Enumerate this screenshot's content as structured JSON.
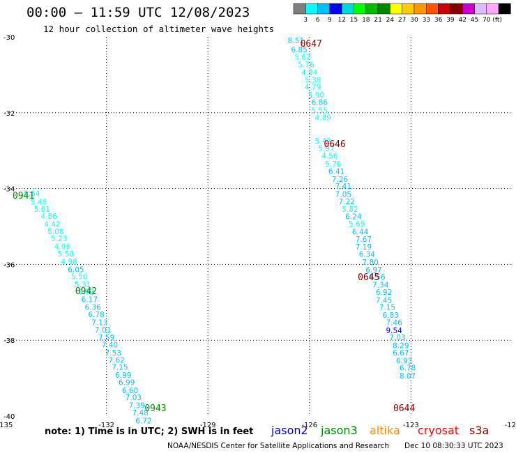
{
  "title": "00:00 – 11:59 UTC 12/08/2023",
  "subtitle": "12 hour collection of altimeter wave heights",
  "note": "note: 1) Time is in UTC; 2) SWH is in feet",
  "credit": "NOAA/NESDIS Center for Satellite Applications and Research",
  "generated": "Dec 10 08:30:33 UTC 2023",
  "satellites": [
    {
      "name": "jason2",
      "color": "#0000cc"
    },
    {
      "name": "jason3",
      "color": "#008800"
    },
    {
      "name": "altika",
      "color": "#ff8800"
    },
    {
      "name": "cryosat",
      "color": "#ff0000"
    },
    {
      "name": "s3a",
      "color": "#880000"
    }
  ],
  "colorbar": {
    "colors": [
      "#7f7f7f",
      "#00ffff",
      "#00bfff",
      "#0000ff",
      "#00d7d7",
      "#00ff00",
      "#00bb00",
      "#008800",
      "#ffff00",
      "#ffcc00",
      "#ff9900",
      "#ff5500",
      "#cc0000",
      "#880000",
      "#cc00cc",
      "#ddbbff",
      "#ffaaff",
      "#000000"
    ],
    "labels": [
      "3",
      "6",
      "9",
      "12",
      "15",
      "18",
      "21",
      "24",
      "27",
      "30",
      "33",
      "36",
      "39",
      "42",
      "45",
      "70",
      "(ft)"
    ]
  },
  "map": {
    "lon_range": [
      -135,
      -120
    ],
    "lat_range": [
      -40,
      -30
    ],
    "lon_ticks": [
      "-135",
      "-132",
      "-129",
      "-126",
      "-123",
      "-120"
    ],
    "lat_ticks": [
      "-30",
      "-32",
      "-34",
      "-36",
      "-38",
      "-40"
    ]
  },
  "chart_data": {
    "type": "scatter",
    "xlabel": "longitude",
    "ylabel": "latitude",
    "xlim": [
      -135,
      -120
    ],
    "ylim": [
      -40,
      -30
    ],
    "tracks": [
      {
        "satellite": "jason3",
        "time_labels": [
          {
            "text": "0941",
            "lon": -134.45,
            "lat": -34.17
          },
          {
            "text": "0942",
            "lon": -132.6,
            "lat": -36.69
          },
          {
            "text": "0943",
            "lon": -130.55,
            "lat": -39.78
          }
        ],
        "points": [
          {
            "lon": -134.2,
            "lat": -34.2,
            "swh": "5.64"
          },
          {
            "lon": -134.0,
            "lat": -34.42,
            "swh": "5.48"
          },
          {
            "lon": -133.9,
            "lat": -34.61,
            "swh": "5.61"
          },
          {
            "lon": -133.7,
            "lat": -34.8,
            "swh": "4.86"
          },
          {
            "lon": -133.6,
            "lat": -35.01,
            "swh": "4.42"
          },
          {
            "lon": -133.5,
            "lat": -35.2,
            "swh": "5.08"
          },
          {
            "lon": -133.4,
            "lat": -35.39,
            "swh": "5.23"
          },
          {
            "lon": -133.3,
            "lat": -35.6,
            "swh": "4.96"
          },
          {
            "lon": -133.2,
            "lat": -35.79,
            "swh": "5.58"
          },
          {
            "lon": -133.1,
            "lat": -35.99,
            "swh": "4.98"
          },
          {
            "lon": -132.9,
            "lat": -36.2,
            "swh": "6.05"
          },
          {
            "lon": -132.8,
            "lat": -36.39,
            "swh": "5.50"
          },
          {
            "lon": -132.7,
            "lat": -36.6,
            "swh": "5.31"
          },
          {
            "lon": -132.6,
            "lat": -36.79,
            "swh": "5.92"
          },
          {
            "lon": -132.5,
            "lat": -36.99,
            "swh": "6.17"
          },
          {
            "lon": -132.4,
            "lat": -37.2,
            "swh": "6.36"
          },
          {
            "lon": -132.3,
            "lat": -37.39,
            "swh": "6.78"
          },
          {
            "lon": -132.2,
            "lat": -37.6,
            "swh": "7.13"
          },
          {
            "lon": -132.1,
            "lat": -37.79,
            "swh": "7.01"
          },
          {
            "lon": -132.0,
            "lat": -38.0,
            "swh": "7.59"
          },
          {
            "lon": -131.9,
            "lat": -38.19,
            "swh": "7.40"
          },
          {
            "lon": -131.8,
            "lat": -38.4,
            "swh": "7.53"
          },
          {
            "lon": -131.7,
            "lat": -38.59,
            "swh": "7.62"
          },
          {
            "lon": -131.6,
            "lat": -38.78,
            "swh": "7.15"
          },
          {
            "lon": -131.5,
            "lat": -38.99,
            "swh": "6.99"
          },
          {
            "lon": -131.4,
            "lat": -39.18,
            "swh": "6.99"
          },
          {
            "lon": -131.3,
            "lat": -39.39,
            "swh": "6.60"
          },
          {
            "lon": -131.2,
            "lat": -39.58,
            "swh": "7.03"
          },
          {
            "lon": -131.1,
            "lat": -39.79,
            "swh": "7.39"
          },
          {
            "lon": -131.0,
            "lat": -39.98,
            "swh": "7.48"
          },
          {
            "lon": -130.9,
            "lat": -40.19,
            "swh": "6.72"
          }
        ]
      },
      {
        "satellite": "s3a",
        "time_labels": [
          {
            "text": "0647",
            "lon": -125.95,
            "lat": -30.17
          },
          {
            "text": "0646",
            "lon": -125.25,
            "lat": -32.81
          },
          {
            "text": "0645",
            "lon": -124.25,
            "lat": -36.32
          },
          {
            "text": "0644",
            "lon": -123.2,
            "lat": -39.78
          }
        ],
        "points": [
          {
            "lon": -126.4,
            "lat": -30.17,
            "swh": "8.51"
          },
          {
            "lon": -126.3,
            "lat": -30.4,
            "swh": "6.85"
          },
          {
            "lon": -126.2,
            "lat": -30.6,
            "swh": "5.62"
          },
          {
            "lon": -126.1,
            "lat": -30.8,
            "swh": "5.76"
          },
          {
            "lon": -126.0,
            "lat": -31.0,
            "swh": "4.94"
          },
          {
            "lon": -125.9,
            "lat": -31.2,
            "swh": "5.38"
          },
          {
            "lon": -125.9,
            "lat": -31.39,
            "swh": "4.79"
          },
          {
            "lon": -125.8,
            "lat": -31.6,
            "swh": "5.90"
          },
          {
            "lon": -125.7,
            "lat": -31.79,
            "swh": "6.86"
          },
          {
            "lon": -125.7,
            "lat": -32.01,
            "swh": "5.55"
          },
          {
            "lon": -125.6,
            "lat": -32.2,
            "swh": "4.89"
          },
          {
            "lon": -125.6,
            "lat": -32.81,
            "swh": "5.42"
          },
          {
            "lon": -125.5,
            "lat": -33.01,
            "swh": "5.97"
          },
          {
            "lon": -125.4,
            "lat": -33.2,
            "swh": "4.56"
          },
          {
            "lon": -125.3,
            "lat": -33.42,
            "swh": "5.76"
          },
          {
            "lon": -125.2,
            "lat": -33.61,
            "swh": "6.41"
          },
          {
            "lon": -125.1,
            "lat": -33.82,
            "swh": "7.26"
          },
          {
            "lon": -125.0,
            "lat": -34.01,
            "swh": "7.41"
          },
          {
            "lon": -125.0,
            "lat": -34.22,
            "swh": "7.05"
          },
          {
            "lon": -124.9,
            "lat": -34.41,
            "swh": "7.22"
          },
          {
            "lon": -124.8,
            "lat": -34.61,
            "swh": "5.82"
          },
          {
            "lon": -124.7,
            "lat": -34.81,
            "swh": "6.24"
          },
          {
            "lon": -124.6,
            "lat": -35.0,
            "swh": "5.69"
          },
          {
            "lon": -124.5,
            "lat": -35.21,
            "swh": "6.44"
          },
          {
            "lon": -124.4,
            "lat": -35.4,
            "swh": "7.67"
          },
          {
            "lon": -124.4,
            "lat": -35.61,
            "swh": "7.19"
          },
          {
            "lon": -124.3,
            "lat": -35.8,
            "swh": "6.34"
          },
          {
            "lon": -124.2,
            "lat": -36.01,
            "swh": "7.80"
          },
          {
            "lon": -124.1,
            "lat": -36.21,
            "swh": "6.97"
          },
          {
            "lon": -124.0,
            "lat": -36.4,
            "swh": "6.56"
          },
          {
            "lon": -123.9,
            "lat": -36.61,
            "swh": "7.34"
          },
          {
            "lon": -123.8,
            "lat": -36.8,
            "swh": "6.92"
          },
          {
            "lon": -123.8,
            "lat": -37.01,
            "swh": "7.45"
          },
          {
            "lon": -123.7,
            "lat": -37.2,
            "swh": "7.15"
          },
          {
            "lon": -123.6,
            "lat": -37.41,
            "swh": "6.83"
          },
          {
            "lon": -123.5,
            "lat": -37.6,
            "swh": "7.46"
          },
          {
            "lon": -123.5,
            "lat": -37.81,
            "swh": "9.54"
          },
          {
            "lon": -123.4,
            "lat": -38.0,
            "swh": "7.03"
          },
          {
            "lon": -123.3,
            "lat": -38.21,
            "swh": "8.29"
          },
          {
            "lon": -123.3,
            "lat": -38.4,
            "swh": "6.67"
          },
          {
            "lon": -123.2,
            "lat": -38.61,
            "swh": "6.93"
          },
          {
            "lon": -123.1,
            "lat": -38.8,
            "swh": "6.78"
          },
          {
            "lon": -123.1,
            "lat": -39.01,
            "swh": "8.07"
          }
        ]
      }
    ]
  }
}
